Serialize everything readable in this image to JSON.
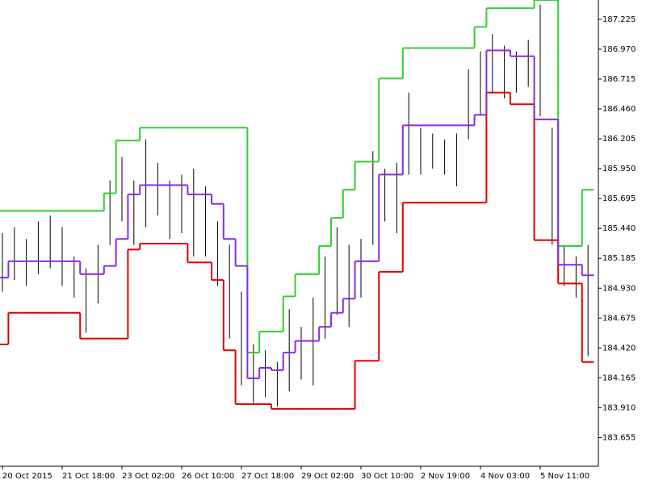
{
  "chart_data": {
    "type": "hilo",
    "categories": [
      "20 Oct 2015",
      null,
      null,
      null,
      null,
      "21 Oct 18:00",
      null,
      null,
      null,
      null,
      "23 Oct 02:00",
      null,
      null,
      null,
      null,
      "26 Oct 10:00",
      null,
      null,
      null,
      null,
      "27 Oct 18:00",
      null,
      null,
      null,
      null,
      "29 Oct 02:00",
      null,
      null,
      null,
      null,
      "30 Oct 10:00",
      null,
      null,
      null,
      null,
      "2 Nov 19:00",
      null,
      null,
      null,
      null,
      "4 Nov 03:00",
      null,
      null,
      null,
      null,
      "5 Nov 11:00",
      null,
      null,
      null,
      null
    ],
    "highs": [
      185.4,
      185.45,
      185.35,
      185.5,
      185.55,
      185.45,
      185.2,
      185.1,
      185.3,
      185.85,
      186.05,
      185.85,
      186.2,
      186.0,
      185.85,
      185.9,
      185.95,
      185.8,
      185.5,
      185.3,
      184.9,
      184.45,
      184.4,
      184.3,
      184.75,
      184.6,
      184.85,
      185.2,
      185.45,
      185.3,
      185.35,
      186.1,
      185.95,
      186.0,
      186.6,
      186.3,
      186.25,
      186.2,
      186.25,
      186.8,
      186.95,
      187.1,
      187.0,
      186.95,
      187.05,
      187.35,
      186.3,
      185.3,
      185.2,
      185.3
    ],
    "lows": [
      184.9,
      185.0,
      184.95,
      185.05,
      185.1,
      184.95,
      184.85,
      184.55,
      184.8,
      185.3,
      185.5,
      185.3,
      185.45,
      185.55,
      185.35,
      185.4,
      185.2,
      185.2,
      184.95,
      184.5,
      184.1,
      183.95,
      184.0,
      183.92,
      184.05,
      184.15,
      184.1,
      184.5,
      184.7,
      184.6,
      184.85,
      185.3,
      185.5,
      185.4,
      185.9,
      185.9,
      185.95,
      185.9,
      185.8,
      186.2,
      186.4,
      186.6,
      186.55,
      186.6,
      186.65,
      186.4,
      185.3,
      184.95,
      184.85,
      184.35
    ],
    "bar_color": "#000000",
    "series": [
      {
        "color": "#32cd32",
        "values": [
          185.59,
          185.59,
          185.59,
          185.59,
          185.59,
          185.59,
          185.59,
          185.59,
          185.59,
          185.74,
          186.19,
          186.19,
          186.3,
          186.3,
          186.3,
          186.3,
          186.3,
          186.3,
          186.3,
          186.3,
          186.3,
          184.38,
          184.56,
          184.56,
          184.86,
          185.05,
          185.05,
          185.29,
          185.53,
          185.77,
          186.01,
          186.01,
          186.72,
          186.72,
          186.98,
          186.98,
          186.98,
          186.98,
          186.98,
          186.98,
          187.16,
          187.32,
          187.32,
          187.32,
          187.32,
          187.39,
          187.39,
          185.29,
          185.29,
          185.77
        ]
      },
      {
        "color": "#e00000",
        "values": [
          184.45,
          184.72,
          184.72,
          184.72,
          184.72,
          184.72,
          184.72,
          184.5,
          184.5,
          184.5,
          184.5,
          185.26,
          185.31,
          185.31,
          185.31,
          185.31,
          185.15,
          185.15,
          185.0,
          184.4,
          183.94,
          183.94,
          183.94,
          183.9,
          183.9,
          183.9,
          183.9,
          183.9,
          183.9,
          183.9,
          184.31,
          184.31,
          185.07,
          185.07,
          185.66,
          185.66,
          185.66,
          185.66,
          185.66,
          185.66,
          185.66,
          186.6,
          186.6,
          186.5,
          186.5,
          185.34,
          185.34,
          184.97,
          184.97,
          184.3
        ]
      },
      {
        "color": "#8a2be2",
        "values": [
          185.02,
          185.16,
          185.16,
          185.16,
          185.16,
          185.16,
          185.16,
          185.05,
          185.05,
          185.12,
          185.35,
          185.73,
          185.81,
          185.81,
          185.81,
          185.81,
          185.73,
          185.73,
          185.65,
          185.35,
          185.12,
          184.16,
          184.25,
          184.23,
          184.38,
          184.48,
          184.48,
          184.6,
          184.72,
          184.84,
          185.16,
          185.16,
          185.9,
          185.9,
          186.32,
          186.32,
          186.32,
          186.32,
          186.32,
          186.32,
          186.41,
          186.96,
          186.96,
          186.91,
          186.91,
          186.37,
          186.37,
          185.13,
          185.13,
          185.04
        ]
      }
    ],
    "ylim": [
      183.41,
      187.39
    ],
    "yticks": [
      187.225,
      {
        "value": 186.97,
        "label": "186.970"
      },
      186.715,
      {
        "value": 186.46,
        "label": "186.460"
      },
      186.205,
      {
        "value": 185.95,
        "label": "185.950"
      },
      185.695,
      {
        "value": 185.44,
        "label": "185.440"
      },
      185.185,
      {
        "value": 184.93,
        "label": "184.930"
      },
      184.675,
      {
        "value": 184.42,
        "label": "184.420"
      },
      184.165,
      {
        "value": 183.91,
        "label": "183.910"
      },
      183.655
    ]
  }
}
